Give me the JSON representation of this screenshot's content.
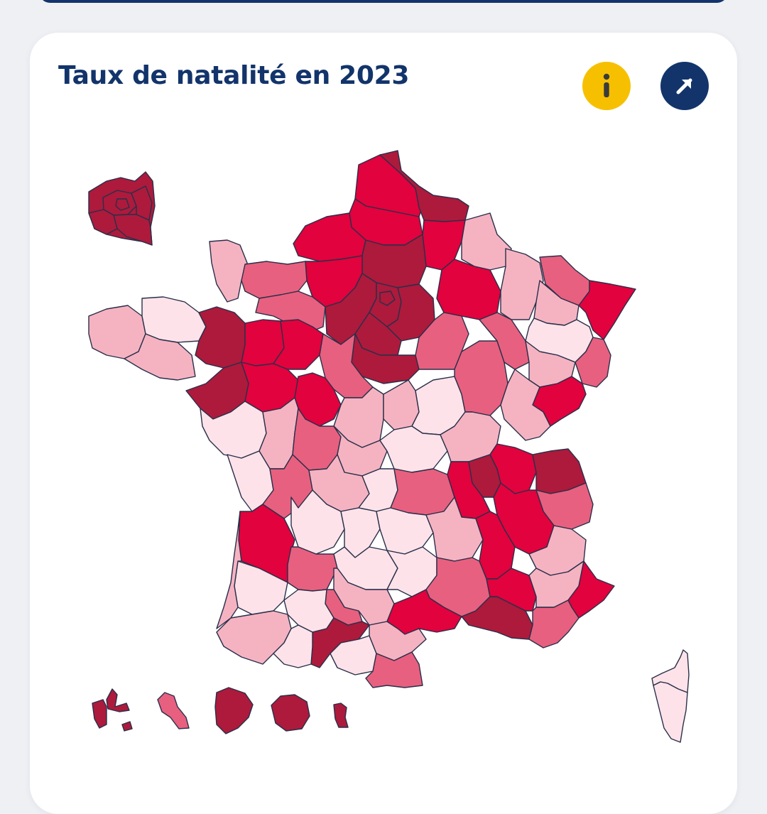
{
  "card": {
    "title": "Taux de natalité en 2023"
  },
  "buttons": {
    "info": {
      "icon": "info-icon",
      "glyph": "i"
    },
    "open": {
      "icon": "arrow-up-right-icon"
    }
  },
  "map": {
    "colors": {
      "very_low": "#fde3e9",
      "low": "#f5b3c2",
      "medium": "#e8607f",
      "high": "#e2023d",
      "very_high": "#ad1a3c"
    }
  }
}
